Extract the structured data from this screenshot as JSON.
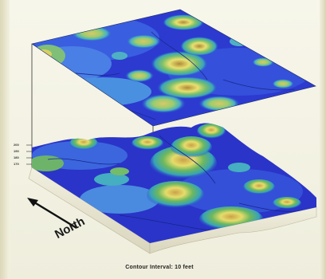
{
  "figure": {
    "direction_label": "North",
    "caption": "Contour Interval:  10 feet",
    "elevation_ticks": [
      "200",
      "190",
      "180",
      "170"
    ]
  }
}
